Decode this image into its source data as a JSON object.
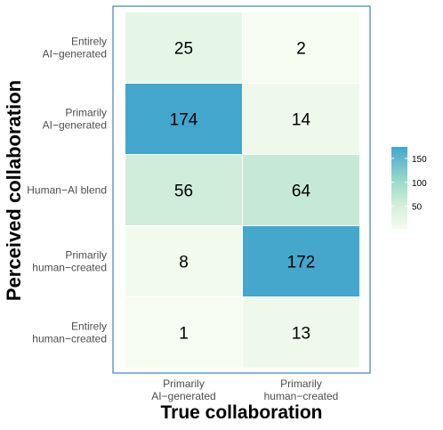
{
  "chart_data": {
    "type": "heatmap",
    "xlabel": "True collaboration",
    "ylabel": "Perceived collaboration",
    "x_categories": [
      [
        "Primarily",
        "AI−generated"
      ],
      [
        "Primarily",
        "human−created"
      ]
    ],
    "y_categories": [
      [
        "Entirely",
        "AI−generated"
      ],
      [
        "Primarily",
        "AI−generated"
      ],
      [
        "Human−AI blend"
      ],
      [
        "Primarily",
        "human−created"
      ],
      [
        "Entirely",
        "human−created"
      ]
    ],
    "values": [
      [
        25,
        2
      ],
      [
        174,
        14
      ],
      [
        56,
        64
      ],
      [
        8,
        172
      ],
      [
        1,
        13
      ]
    ],
    "colorbar": {
      "ticks": [
        50,
        100,
        150
      ],
      "range": [
        1,
        174
      ],
      "colors": [
        "#f7fcf0",
        "#d3eedb",
        "#98d8ca",
        "#43a6cc"
      ]
    }
  }
}
